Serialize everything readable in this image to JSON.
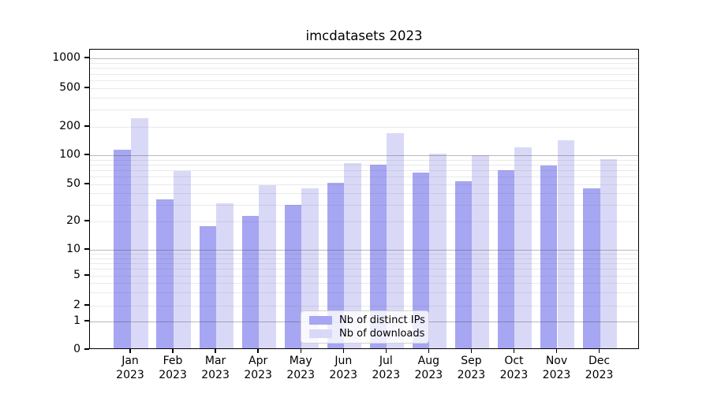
{
  "chart_data": {
    "type": "bar",
    "title": "imcdatasets 2023",
    "categories": [
      "Jan",
      "Feb",
      "Mar",
      "Apr",
      "May",
      "Jun",
      "Jul",
      "Aug",
      "Sep",
      "Oct",
      "Nov",
      "Dec"
    ],
    "category_year_line": "2023",
    "series": [
      {
        "name": "Nb of distinct IPs",
        "color": "#a6a6f2",
        "values": [
          110,
          33,
          17,
          22,
          29,
          50,
          77,
          64,
          52,
          67,
          75,
          44
        ]
      },
      {
        "name": "Nb of downloads",
        "color": "#d9d9f7",
        "values": [
          235,
          66,
          30,
          47,
          44,
          80,
          165,
          100,
          96,
          117,
          140,
          88
        ]
      }
    ],
    "xlabel": "",
    "ylabel": "",
    "yscale": "symlog",
    "yticks": [
      0,
      1,
      2,
      5,
      10,
      20,
      50,
      100,
      200,
      500,
      1000
    ],
    "ylim": [
      0,
      1300
    ],
    "grid": true,
    "legend_position": "lower center"
  }
}
